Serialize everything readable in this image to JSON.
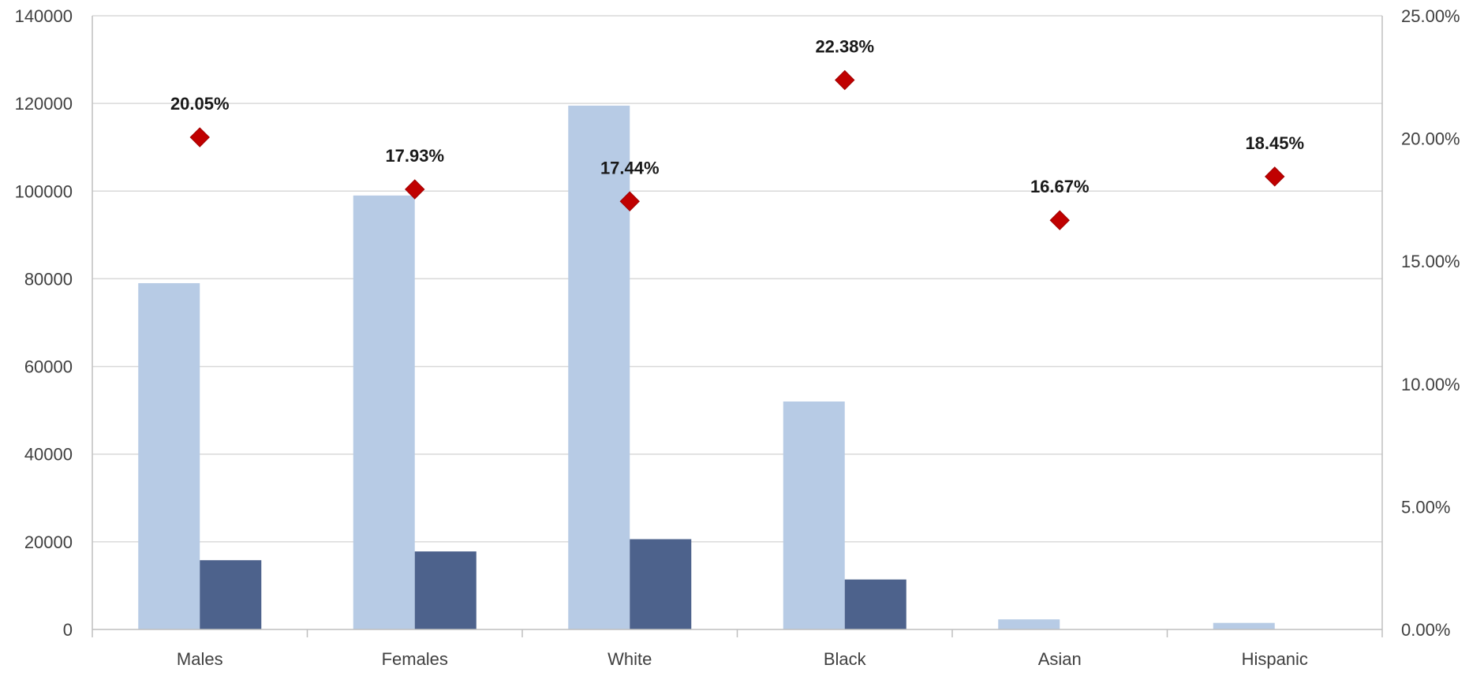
{
  "chart_data": {
    "type": "bar",
    "categories": [
      "Males",
      "Females",
      "White",
      "Black",
      "Asian",
      "Hispanic"
    ],
    "series": [
      {
        "values": [
          79000,
          99000,
          119500,
          52000,
          2300,
          1500
        ],
        "color": "#b7cbe5",
        "axis": "left",
        "kind": "bar"
      },
      {
        "values": [
          15800,
          17800,
          20600,
          11400,
          0,
          0
        ],
        "color": "#4d628c",
        "axis": "left",
        "kind": "bar"
      },
      {
        "values": [
          20.05,
          17.93,
          17.44,
          22.38,
          16.67,
          18.45
        ],
        "labels": [
          "20.05%",
          "17.93%",
          "17.44%",
          "22.38%",
          "16.67%",
          "18.45%"
        ],
        "color": "#c00000",
        "axis": "right",
        "kind": "scatter",
        "marker": "diamond"
      }
    ],
    "y_left": {
      "min": 0,
      "max": 140000,
      "ticks": [
        "0",
        "20000",
        "40000",
        "60000",
        "80000",
        "100000",
        "120000",
        "140000"
      ]
    },
    "y_right": {
      "min": 0,
      "max": 25,
      "ticks": [
        "0.00%",
        "5.00%",
        "10.00%",
        "15.00%",
        "20.00%",
        "25.00%"
      ]
    },
    "grid": true,
    "legend": "none",
    "title": "",
    "xlabel": "",
    "ylabel": ""
  }
}
